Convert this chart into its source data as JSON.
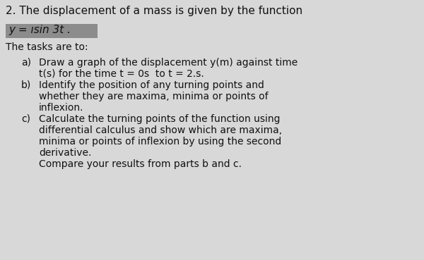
{
  "bg_color": "#d8d8d8",
  "formula_highlight_color": "#8c8c8c",
  "title_line1": "2. The displacement of a mass is given by the function",
  "formula": "y = ısin 3t .",
  "tasks_header": "The tasks are to:",
  "lines": [
    [
      "a)",
      "Draw a graph of the displacement y(m) against time"
    ],
    [
      "",
      "t(s) for the time t = 0s  to t = 2.s."
    ],
    [
      "b)",
      "Identify the position of any turning points and"
    ],
    [
      "",
      "whether they are maxima, minima or points of"
    ],
    [
      "",
      "inflexion."
    ],
    [
      "c)",
      "Calculate the turning points of the function using"
    ],
    [
      "",
      "differential calculus and show which are maxima,"
    ],
    [
      "",
      "minima or points of inflexion by using the second"
    ],
    [
      "",
      "derivative."
    ],
    [
      "",
      "Compare your results from parts b and c."
    ]
  ],
  "font_size_title": 11,
  "font_size_formula": 11,
  "font_size_body": 10,
  "font_family": "DejaVu Sans"
}
